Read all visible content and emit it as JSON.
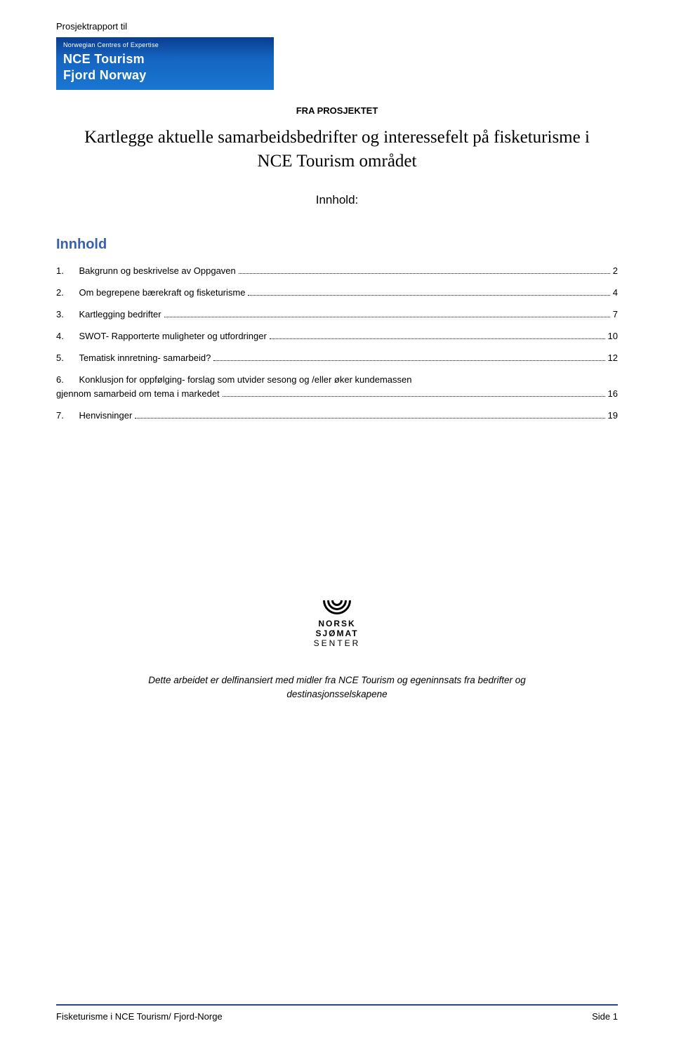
{
  "topLabel": "Prosjektrapport til",
  "logo": {
    "small": "Norwegian Centres of Expertise",
    "line1": "NCE Tourism",
    "line2": "Fjord Norway"
  },
  "projectLabel": "FRA PROSJEKTET",
  "mainTitle": "Kartlegge aktuelle samarbeidsbedrifter og interessefelt på fisketurisme i NCE Tourism området",
  "innholdLabel": "Innhold:",
  "tocHeading": "Innhold",
  "toc": [
    {
      "num": "1.",
      "text": "Bakgrunn og beskrivelse av Oppgaven",
      "page": "2"
    },
    {
      "num": "2.",
      "text": "Om begrepene bærekraft og fisketurisme",
      "page": "4"
    },
    {
      "num": "3.",
      "text": "Kartlegging bedrifter",
      "page": "7"
    },
    {
      "num": "4.",
      "text": "SWOT- Rapporterte muligheter og utfordringer",
      "page": "10"
    },
    {
      "num": "5.",
      "text": "Tematisk innretning- samarbeid?",
      "page": "12"
    },
    {
      "num": "6.",
      "textWrap1": "Konklusjon for oppfølging- forslag som utvider sesong og /eller øker kundemassen",
      "textWrap2": "gjennom samarbeid om tema i markedet",
      "page": "16"
    },
    {
      "num": "7.",
      "text": "Henvisninger",
      "page": "19"
    }
  ],
  "sjoLogo": {
    "l1": "NORSK",
    "l2": "SJØMAT",
    "l3": "SENTER"
  },
  "funding": "Dette arbeidet er delfinansiert med midler fra NCE Tourism og egeninnsats fra bedrifter og destinasjonsselskapene",
  "footer": {
    "left": "Fisketurisme i NCE Tourism/ Fjord-Norge",
    "right": "Side 1"
  }
}
